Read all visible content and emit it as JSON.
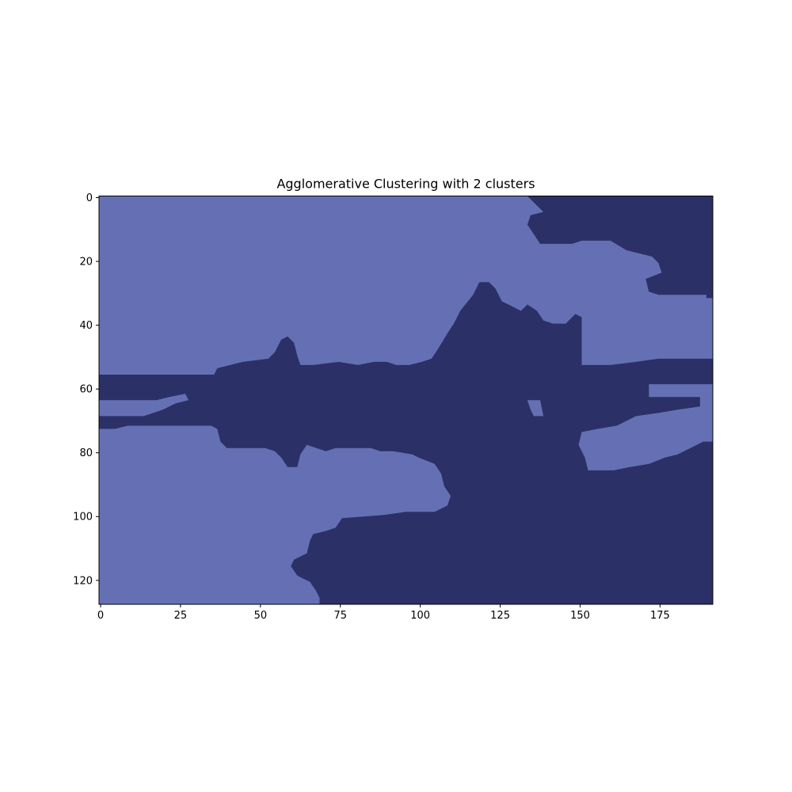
{
  "colors": {
    "cluster_0": "#6570b4",
    "cluster_1": "#2b3166",
    "axes": "#000000",
    "background": "#ffffff"
  },
  "chart_data": {
    "type": "heatmap",
    "title": "Agglomerative Clustering with 2 clusters",
    "xlabel": "",
    "ylabel": "",
    "image_shape": [
      128,
      192
    ],
    "xlim": [
      -0.5,
      191.5
    ],
    "ylim": [
      127.5,
      -0.5
    ],
    "x_ticks": [
      0,
      25,
      50,
      75,
      100,
      125,
      150,
      175
    ],
    "y_ticks": [
      0,
      20,
      40,
      60,
      80,
      100,
      120
    ],
    "grid": false,
    "legend": "none",
    "cluster_regions": {
      "cluster_1_upper_right": [
        [
          134,
          0
        ],
        [
          192,
          0
        ],
        [
          192,
          32
        ],
        [
          190,
          32
        ],
        [
          190,
          31
        ],
        [
          175,
          31
        ],
        [
          172,
          30
        ],
        [
          171,
          26
        ],
        [
          176,
          24
        ],
        [
          175,
          21
        ],
        [
          173,
          19
        ],
        [
          165,
          17
        ],
        [
          160,
          14
        ],
        [
          151,
          14
        ],
        [
          148,
          15
        ],
        [
          140,
          15
        ],
        [
          138,
          15
        ],
        [
          136,
          12
        ],
        [
          134,
          9
        ],
        [
          135,
          6
        ],
        [
          139,
          5
        ],
        [
          136,
          2
        ]
      ],
      "cluster_1_main": [
        [
          0,
          56
        ],
        [
          36,
          56
        ],
        [
          37,
          54
        ],
        [
          45,
          52
        ],
        [
          53,
          51
        ],
        [
          55,
          49
        ],
        [
          57,
          45
        ],
        [
          59,
          44
        ],
        [
          61,
          46
        ],
        [
          62,
          50
        ],
        [
          63,
          53
        ],
        [
          67,
          53
        ],
        [
          75,
          52
        ],
        [
          81,
          53
        ],
        [
          86,
          52
        ],
        [
          90,
          52
        ],
        [
          93,
          53
        ],
        [
          97,
          53
        ],
        [
          101,
          52
        ],
        [
          104,
          51
        ],
        [
          106,
          48
        ],
        [
          109,
          43
        ],
        [
          111,
          40
        ],
        [
          113,
          36
        ],
        [
          117,
          31
        ],
        [
          119,
          27
        ],
        [
          122,
          27
        ],
        [
          124,
          29
        ],
        [
          126,
          33
        ],
        [
          128,
          34
        ],
        [
          132,
          36
        ],
        [
          134,
          34
        ],
        [
          137,
          36
        ],
        [
          139,
          39
        ],
        [
          142,
          40
        ],
        [
          146,
          40
        ],
        [
          149,
          37
        ],
        [
          151,
          38
        ],
        [
          151,
          53
        ],
        [
          160,
          53
        ],
        [
          168,
          52
        ],
        [
          175,
          51
        ],
        [
          192,
          51
        ],
        [
          192,
          59
        ],
        [
          172,
          59
        ],
        [
          172,
          63
        ],
        [
          188,
          63
        ],
        [
          188,
          66
        ],
        [
          181,
          67
        ],
        [
          175,
          68
        ],
        [
          168,
          69
        ],
        [
          162,
          72
        ],
        [
          156,
          73
        ],
        [
          151,
          74
        ],
        [
          150,
          78
        ],
        [
          152,
          82
        ],
        [
          153,
          86
        ],
        [
          161,
          86
        ],
        [
          166,
          85
        ],
        [
          172,
          84
        ],
        [
          177,
          82
        ],
        [
          181,
          81
        ],
        [
          185,
          79
        ],
        [
          189,
          77
        ],
        [
          192,
          77
        ],
        [
          192,
          128
        ],
        [
          69,
          128
        ],
        [
          69,
          126
        ],
        [
          68,
          124
        ],
        [
          66,
          121
        ],
        [
          62,
          119
        ],
        [
          60,
          116
        ],
        [
          61,
          114
        ],
        [
          65,
          112
        ],
        [
          66,
          108
        ],
        [
          67,
          106
        ],
        [
          71,
          105
        ],
        [
          74,
          104
        ],
        [
          76,
          101
        ],
        [
          89,
          100
        ],
        [
          96,
          99
        ],
        [
          105,
          99
        ],
        [
          109,
          97
        ],
        [
          110,
          94
        ],
        [
          108,
          91
        ],
        [
          107,
          87
        ],
        [
          105,
          84
        ],
        [
          100,
          82
        ],
        [
          98,
          81
        ],
        [
          92,
          80
        ],
        [
          88,
          80
        ],
        [
          85,
          79
        ],
        [
          81,
          79
        ],
        [
          78,
          79
        ],
        [
          74,
          79
        ],
        [
          71,
          80
        ],
        [
          68,
          79
        ],
        [
          65,
          78
        ],
        [
          63,
          81
        ],
        [
          62,
          85
        ],
        [
          59,
          85
        ],
        [
          57,
          82
        ],
        [
          55,
          80
        ],
        [
          52,
          79
        ],
        [
          48,
          79
        ],
        [
          44,
          79
        ],
        [
          40,
          79
        ],
        [
          38,
          77
        ],
        [
          37,
          73
        ],
        [
          35,
          72
        ],
        [
          9,
          72
        ],
        [
          5,
          73
        ],
        [
          0,
          73
        ],
        [
          0,
          69
        ],
        [
          14,
          69
        ],
        [
          20,
          67
        ],
        [
          24,
          65
        ],
        [
          28,
          64
        ],
        [
          27,
          62
        ],
        [
          22,
          63
        ],
        [
          18,
          64
        ],
        [
          5,
          64
        ],
        [
          0,
          64
        ]
      ],
      "cluster_0_islands": [
        [
          [
            134,
            64
          ],
          [
            138,
            64
          ],
          [
            139,
            69
          ],
          [
            136,
            69
          ],
          [
            135,
            67
          ]
        ]
      ]
    }
  }
}
